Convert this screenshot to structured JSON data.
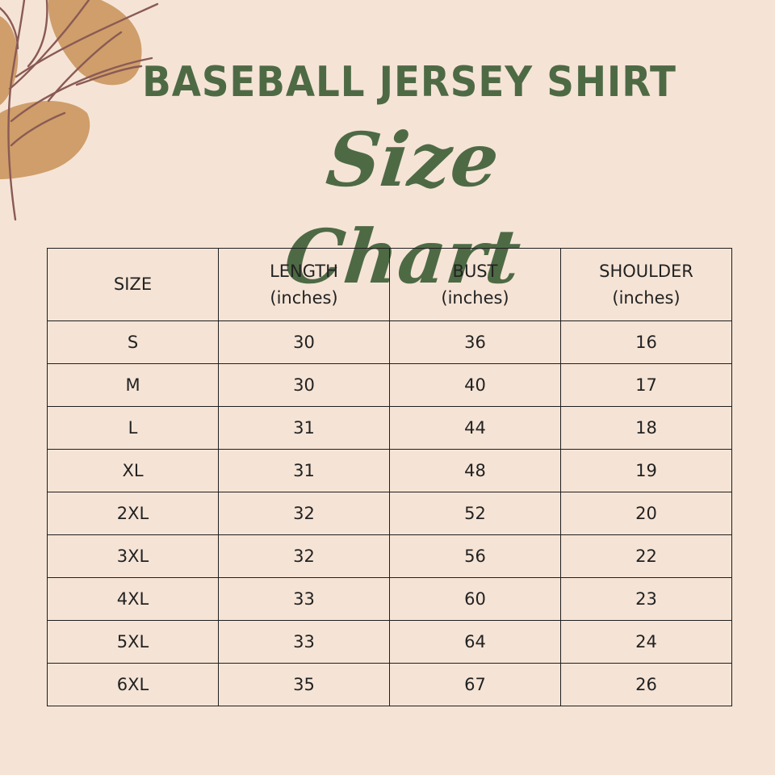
{
  "title": "BASEBALL JERSEY SHIRT",
  "subtitle": "Size Chart",
  "colors": {
    "background": "#f5e4d6",
    "title": "#4e6a45",
    "leaf": "#cf9e6a",
    "branch": "#8a5a55",
    "border": "#1e1e1e"
  },
  "table": {
    "headers": [
      {
        "label": "SIZE",
        "unit": ""
      },
      {
        "label": "LENGTH",
        "unit": "(inches)"
      },
      {
        "label": "BUST",
        "unit": "(inches)"
      },
      {
        "label": "SHOULDER",
        "unit": "(inches)"
      }
    ],
    "rows": [
      [
        "S",
        "30",
        "36",
        "16"
      ],
      [
        "M",
        "30",
        "40",
        "17"
      ],
      [
        "L",
        "31",
        "44",
        "18"
      ],
      [
        "XL",
        "31",
        "48",
        "19"
      ],
      [
        "2XL",
        "32",
        "52",
        "20"
      ],
      [
        "3XL",
        "32",
        "56",
        "22"
      ],
      [
        "4XL",
        "33",
        "60",
        "23"
      ],
      [
        "5XL",
        "33",
        "64",
        "24"
      ],
      [
        "6XL",
        "35",
        "67",
        "26"
      ]
    ]
  }
}
